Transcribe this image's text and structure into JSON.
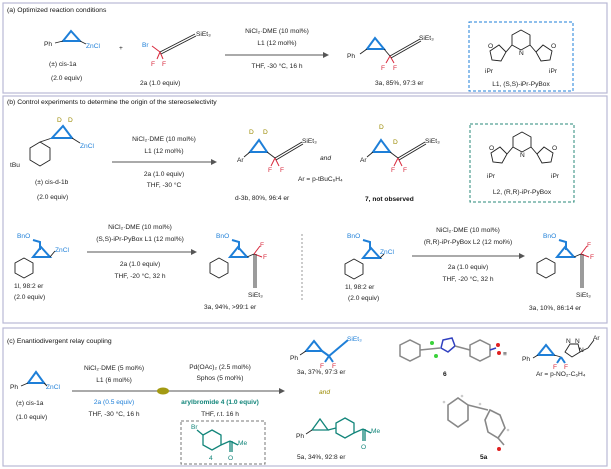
{
  "colors": {
    "accent_blue": "#1e7fd8",
    "fluorine_red": "#d8283c",
    "deuterium_olive": "#9a8a00",
    "teal": "#12857a",
    "panel_border": "#b9b9d6"
  },
  "panel_a": {
    "title": "(a) Optimized reaction conditions",
    "reactant1": {
      "ph": "Ph",
      "zn": "ZnCl",
      "name": "(±) cis-1a",
      "equiv": "(2.0 equiv)"
    },
    "plus": "+",
    "reactant2": {
      "br": "Br",
      "f1": "F",
      "f2": "F",
      "si": "SiEt₃",
      "label": "2a (1.0 equiv)"
    },
    "cond_above_1": "NiCl₂·DME (10 mol%)",
    "cond_above_2": "L1 (12 mol%)",
    "cond_below_1": "THF, -30 °C, 16 h",
    "product": {
      "ph": "Ph",
      "si": "SiEt₃",
      "f1": "F",
      "f2": "F",
      "label": "3a, 85%, 97:3 er"
    },
    "ligand": {
      "n": "N",
      "o": "O",
      "ipr": "iPr",
      "label": "L1, (S,S)-iPr-PyBox"
    }
  },
  "panel_b": {
    "title": "(b) Control experiments to determine the origin of the stereoselectivity",
    "reactant": {
      "d": "D",
      "tbu": "tBu",
      "zn": "ZnCl",
      "name": "(±) cis-d-1b",
      "equiv": "(2.0 equiv)"
    },
    "cond_above_1": "NiCl₂·DME (10 mol%)",
    "cond_above_2": "L1 (12 mol%)",
    "cond_below_1": "2a (1.0 equiv)",
    "cond_below_2": "THF, -30 °C",
    "product1": {
      "d": "D",
      "ar": "Ar",
      "si": "SiEt₃",
      "f": "F",
      "label": "d-3b, 80%, 96:4 er"
    },
    "and": "and",
    "ar_def": "Ar = p-tBuC₆H₄",
    "product2": {
      "d": "D",
      "ar": "Ar",
      "si": "SiEt₃",
      "f": "F",
      "label": "7, not observed"
    },
    "ligand": {
      "n": "N",
      "o": "O",
      "ipr": "iPr",
      "label": "L2, (R,R)-iPr-PyBox"
    },
    "left": {
      "bno": "BnO",
      "zn": "ZnCl",
      "name": "1l, 98:2 er",
      "equiv": "(2.0 equiv)",
      "cond_above_1": "NiCl₂·DME (10 mol%)",
      "cond_above_2": "(S,S)-iPr-PyBox L1 (12 mol%)",
      "cond_below_1": "2a (1.0 equiv)",
      "cond_below_2": "THF, -20 °C, 32 h",
      "product_bno": "BnO",
      "product_f": "F",
      "product_si": "SiEt₃",
      "product_label": "3a, 94%, >99:1 er"
    },
    "right": {
      "bno": "BnO",
      "zn": "ZnCl",
      "name": "1l, 98:2 er",
      "equiv": "(2.0 equiv)",
      "cond_above_1": "NiCl₂·DME (10 mol%)",
      "cond_above_2": "(R,R)-iPr-PyBox L2 (12 mol%)",
      "cond_below_1": "2a (1.0 equiv)",
      "cond_below_2": "THF, -20 °C, 32 h",
      "product_bno": "BnO",
      "product_f": "F",
      "product_si": "SiEt₃",
      "product_label": "3a, 10%, 86:14 er"
    }
  },
  "panel_c": {
    "title": "(c) Enantiodivergent relay coupling",
    "reactant": {
      "ph": "Ph",
      "zn": "ZnCl",
      "name": "(±) cis-1a",
      "equiv": "(1.0 equiv)"
    },
    "step1_above_1": "NiCl₂·DME (5 mol%)",
    "step1_above_2": "L1 (6 mol%)",
    "step1_below_1": "2a (0.5 equiv)",
    "step1_below_2": "THF, -30 °C, 16 h",
    "step2_above_1": "Pd(OAc)₂ (2.5 mol%)",
    "step2_above_2": "Sphos (5 mol%)",
    "step2_below_1": "arylbromide 4 (1.0 equiv)",
    "step2_below_2": "THF, r.t. 16 h",
    "arylbromide": {
      "br": "Br",
      "me": "Me",
      "o": "O",
      "label": "4"
    },
    "product1": {
      "ph": "Ph",
      "si": "SiEt₃",
      "f": "F",
      "label": "3a, 37%, 97:3 er"
    },
    "and": "and",
    "product2": {
      "ph": "Ph",
      "me": "Me",
      "o": "O",
      "label": "5a, 34%, 92:8 er"
    },
    "crystal1_label": "6",
    "equiv_sign": "≡",
    "triazole": {
      "ph": "Ph",
      "n": "N",
      "ar": "Ar",
      "f": "F"
    },
    "ar_def": "Ar = p-NO₂-C₆H₄",
    "crystal2_label": "5a"
  }
}
